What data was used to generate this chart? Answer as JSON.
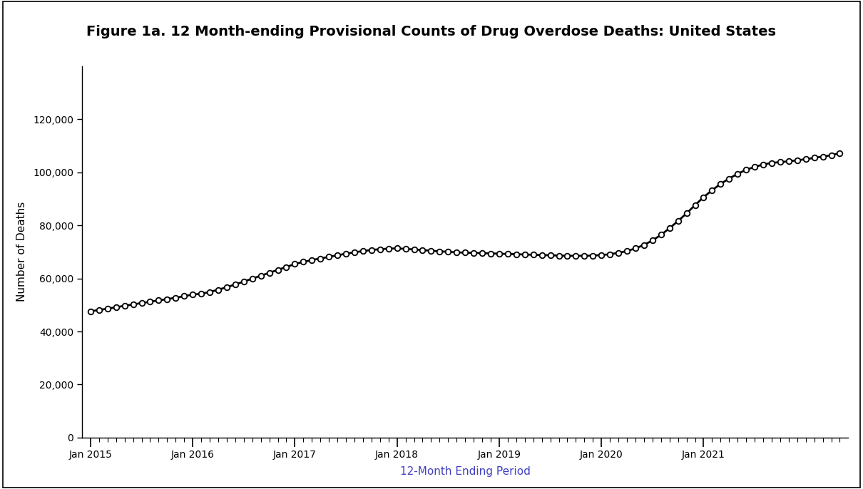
{
  "title": "Figure 1a. 12 Month-ending Provisional Counts of Drug Overdose Deaths: United States",
  "xlabel": "12-Month Ending Period",
  "ylabel": "Number of Deaths",
  "title_bg_color": "#add8e6",
  "title_fontsize": 14,
  "axis_label_fontsize": 11,
  "xlabel_color": "#4040c0",
  "ylim": [
    0,
    140000
  ],
  "yticks": [
    0,
    20000,
    40000,
    60000,
    80000,
    100000,
    120000
  ],
  "xtick_labels": [
    "Jan 2015",
    "Jan 2016",
    "Jan 2017",
    "Jan 2018",
    "Jan 2019",
    "Jan 2020",
    "Jan 2021"
  ],
  "values": [
    47600,
    48100,
    48600,
    49100,
    49700,
    50200,
    50700,
    51200,
    51700,
    52200,
    52700,
    53300,
    53900,
    54200,
    54900,
    55700,
    56700,
    57700,
    58800,
    59900,
    61000,
    62100,
    63200,
    64300,
    65400,
    66200,
    66900,
    67500,
    68100,
    68700,
    69300,
    69800,
    70300,
    70700,
    71000,
    71200,
    71300,
    71100,
    70900,
    70700,
    70400,
    70200,
    70000,
    69800,
    69700,
    69600,
    69500,
    69400,
    69300,
    69200,
    69100,
    69000,
    68900,
    68800,
    68700,
    68600,
    68500,
    68500,
    68500,
    68600,
    68800,
    69100,
    69600,
    70300,
    71300,
    72600,
    74300,
    76400,
    78900,
    81600,
    84500,
    87600,
    90600,
    93200,
    95600,
    97600,
    99400,
    100900,
    102000,
    102900,
    103500,
    103800,
    104100,
    104500,
    104900,
    105400,
    105900,
    106400,
    107200
  ],
  "line_color": "#000000",
  "marker_color": "#000000",
  "marker_face": "#ffffff",
  "line_width": 2.0,
  "marker_size": 5.5,
  "marker_edge_width": 1.3
}
